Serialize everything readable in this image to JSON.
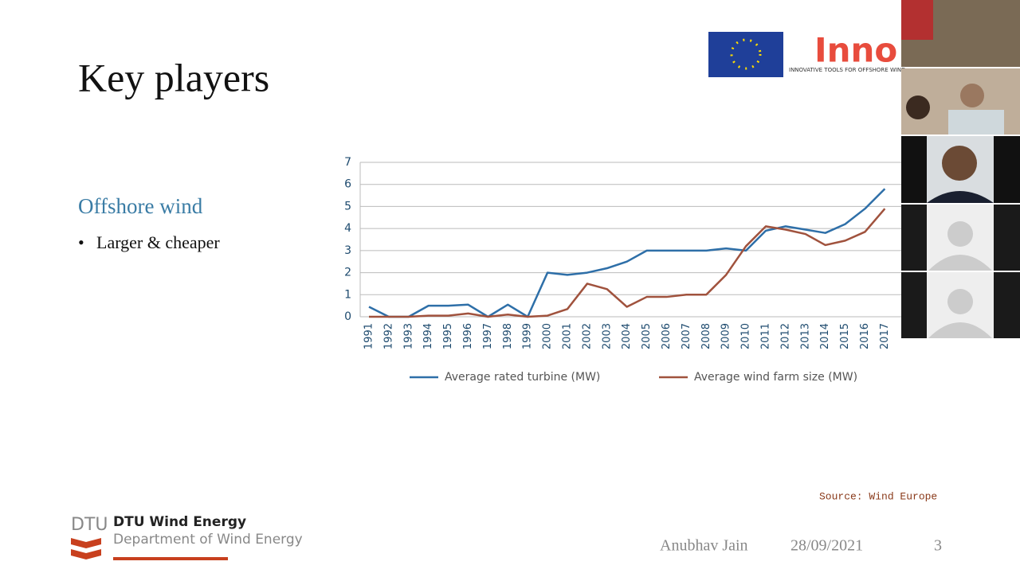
{
  "slide": {
    "title": "Key players",
    "subtitle": "Offshore wind",
    "bullet": "Larger & cheaper",
    "source": "Source: Wind Europe",
    "author": "Anubhav Jain",
    "date": "28/09/2021",
    "page": "3",
    "logo": {
      "name": "Inno",
      "tagline": "INNOVATIVE TOOLS FOR OFFSHORE WIND"
    },
    "footer": {
      "mark": "DTU",
      "unit": "DTU Wind Energy",
      "department": "Department of Wind Energy"
    }
  },
  "chart_data": {
    "type": "line",
    "categories": [
      "1991",
      "1992",
      "1993",
      "1994",
      "1995",
      "1996",
      "1997",
      "1998",
      "1999",
      "2000",
      "2001",
      "2002",
      "2003",
      "2004",
      "2005",
      "2006",
      "2007",
      "2008",
      "2009",
      "2010",
      "2011",
      "2012",
      "2013",
      "2014",
      "2015",
      "2016",
      "2017"
    ],
    "series": [
      {
        "name": "Average rated turbine (MW)",
        "color": "#2e6fa8",
        "values": [
          0.45,
          0,
          0,
          0.5,
          0.5,
          0.55,
          0,
          0.55,
          0,
          2.0,
          1.9,
          2.0,
          2.2,
          2.5,
          3.0,
          3.0,
          3.0,
          3.0,
          3.1,
          3.0,
          3.9,
          4.1,
          3.95,
          3.8,
          4.2,
          4.9,
          5.8
        ]
      },
      {
        "name": "Average wind farm size (MW)",
        "color": "#a0523d",
        "values": [
          0,
          0,
          0,
          0.05,
          0.05,
          0.15,
          0,
          0.1,
          0,
          0.05,
          0.35,
          1.5,
          1.25,
          0.45,
          0.9,
          0.9,
          1.0,
          1.0,
          1.9,
          3.2,
          4.1,
          3.95,
          3.75,
          3.25,
          3.45,
          3.85,
          4.9
        ]
      }
    ],
    "ylim": [
      0,
      7
    ],
    "yticks": [
      0,
      1,
      2,
      3,
      4,
      5,
      6,
      7
    ],
    "grid": true
  }
}
